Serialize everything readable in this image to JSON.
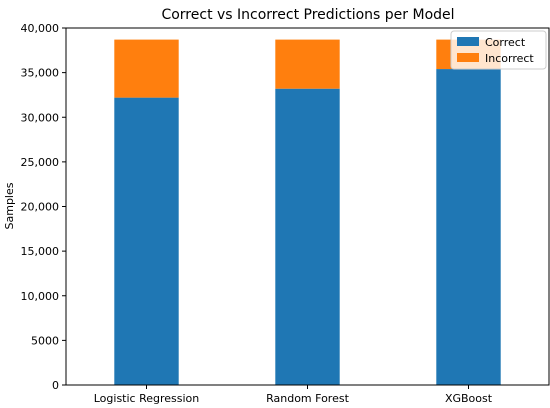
{
  "chart_data": {
    "type": "bar",
    "stacked": true,
    "title": "Correct vs Incorrect Predictions per Model",
    "xlabel": "",
    "ylabel": "Samples",
    "categories": [
      "Logistic Regression",
      "Random Forest",
      "XGBoost"
    ],
    "series": [
      {
        "name": "Correct",
        "color": "#1f77b4",
        "values": [
          32200,
          33200,
          35400
        ]
      },
      {
        "name": "Incorrect",
        "color": "#ff7f0e",
        "values": [
          6500,
          5500,
          3300
        ]
      }
    ],
    "ylim": [
      0,
      40000
    ],
    "yticks": [
      0,
      5000,
      10000,
      15000,
      20000,
      25000,
      30000,
      35000,
      40000
    ],
    "ytick_labels": [
      "0",
      "5000",
      "10,000",
      "15,000",
      "20,000",
      "25,000",
      "30,000",
      "35,000",
      "40,000"
    ],
    "legend_position": "top-right",
    "grid": false
  }
}
